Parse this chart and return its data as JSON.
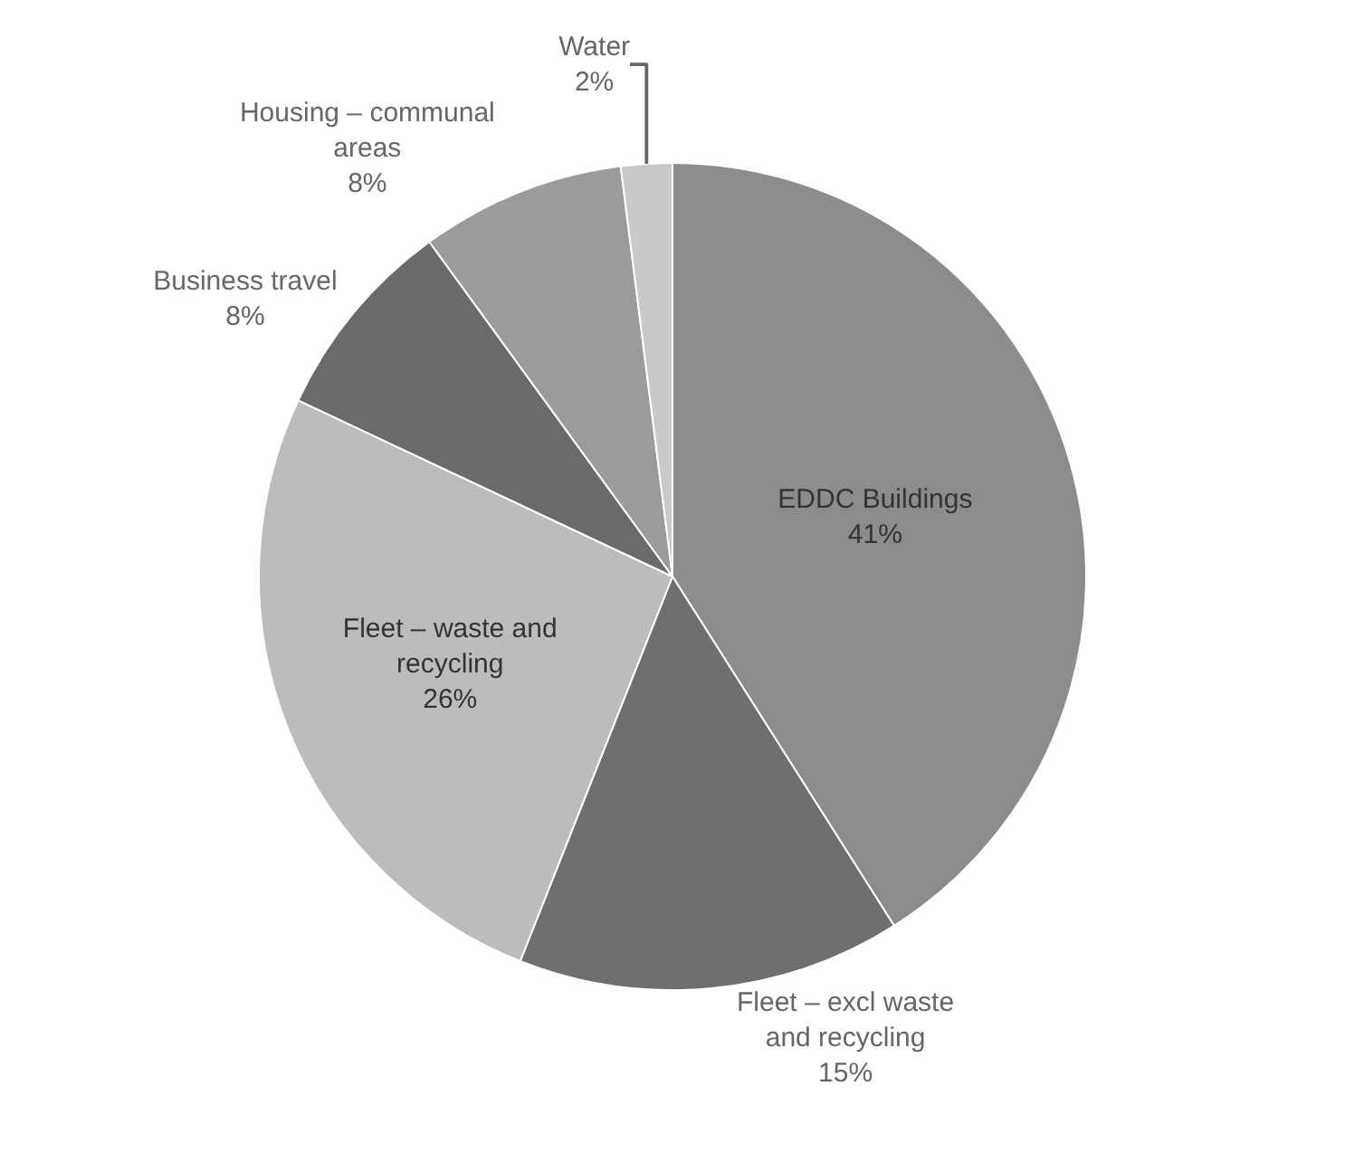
{
  "chart_data": {
    "type": "pie",
    "categories": [
      "EDDC Buildings",
      "Fleet – excl waste and recycling",
      "Fleet – waste and recycling",
      "Business travel",
      "Housing – communal areas",
      "Water"
    ],
    "values": [
      41,
      15,
      26,
      8,
      8,
      2
    ],
    "value_labels": [
      "41%",
      "15%",
      "26%",
      "8%",
      "8%",
      "2%"
    ],
    "colors": [
      "#8c8c8c",
      "#6f6f6f",
      "#bcbcbc",
      "#6a6a6a",
      "#9b9b9b",
      "#c9c9c9"
    ],
    "legend": false
  }
}
